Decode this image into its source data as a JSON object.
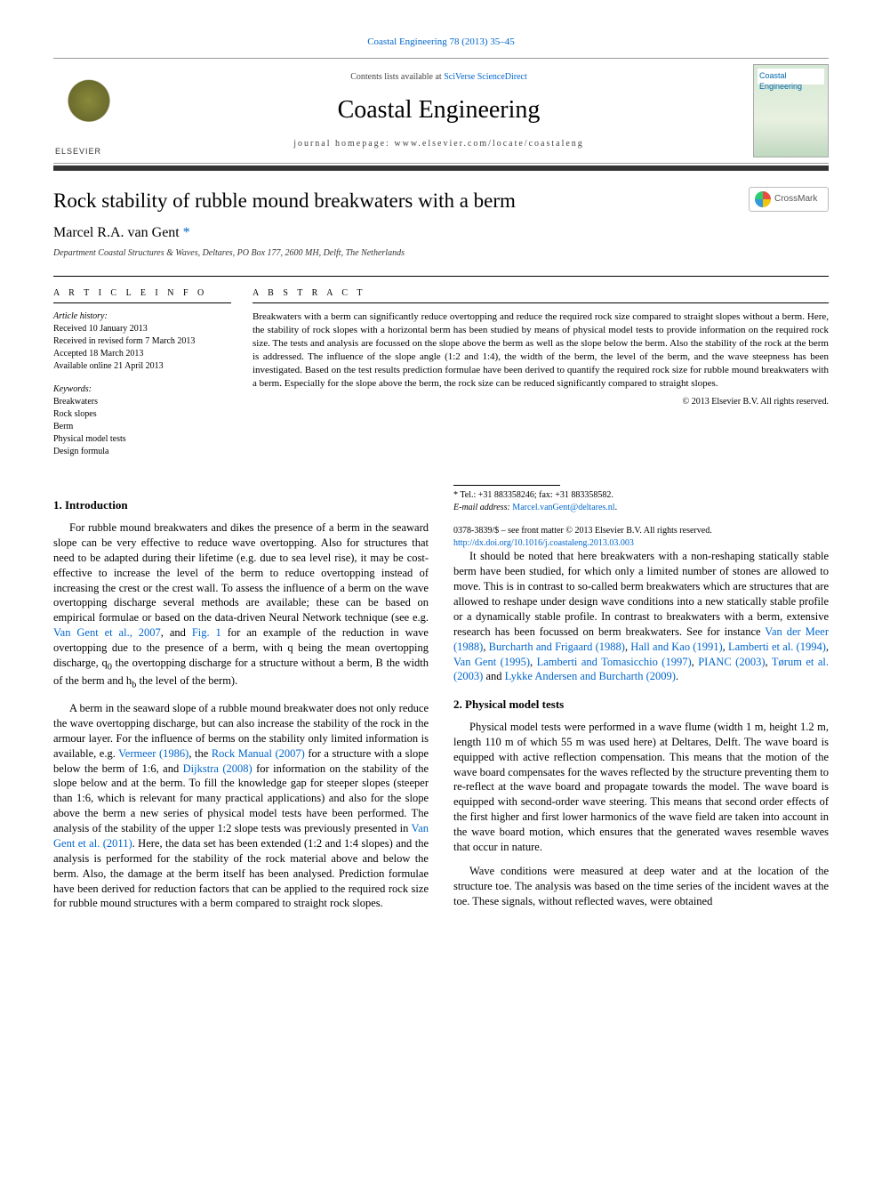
{
  "citation_line": "Coastal Engineering 78 (2013) 35–45",
  "contents_prefix": "Contents lists available at ",
  "contents_link": "SciVerse ScienceDirect",
  "journal_name": "Coastal Engineering",
  "homepage_line": "journal homepage: www.elsevier.com/locate/coastaleng",
  "cover_label": "Coastal Engineering",
  "crossmark_label": "CrossMark",
  "article": {
    "title": "Rock stability of rubble mound breakwaters with a berm",
    "author": "Marcel R.A. van Gent",
    "star_note": "*",
    "affiliation": "Department Coastal Structures & Waves, Deltares, PO Box 177, 2600 MH, Delft, The Netherlands"
  },
  "info": {
    "head": "A R T I C L E   I N F O",
    "history_label": "Article history:",
    "history": [
      "Received 10 January 2013",
      "Received in revised form 7 March 2013",
      "Accepted 18 March 2013",
      "Available online 21 April 2013"
    ],
    "keywords_label": "Keywords:",
    "keywords": [
      "Breakwaters",
      "Rock slopes",
      "Berm",
      "Physical model tests",
      "Design formula"
    ]
  },
  "abstract": {
    "head": "A B S T R A C T",
    "text": "Breakwaters with a berm can significantly reduce overtopping and reduce the required rock size compared to straight slopes without a berm. Here, the stability of rock slopes with a horizontal berm has been studied by means of physical model tests to provide information on the required rock size. The tests and analysis are focussed on the slope above the berm as well as the slope below the berm. Also the stability of the rock at the berm is addressed. The influence of the slope angle (1:2 and 1:4), the width of the berm, the level of the berm, and the wave steepness has been investigated. Based on the test results prediction formulae have been derived to quantify the required rock size for rubble mound breakwaters with a berm. Especially for the slope above the berm, the rock size can be reduced significantly compared to straight slopes.",
    "copyright": "© 2013 Elsevier B.V. All rights reserved."
  },
  "sections": {
    "intro_head": "1. Introduction",
    "intro_p1a": "For rubble mound breakwaters and dikes the presence of a berm in the seaward slope can be very effective to reduce wave overtopping. Also for structures that need to be adapted during their lifetime (e.g. due to sea level rise), it may be cost-effective to increase the level of the berm to reduce overtopping instead of increasing the crest or the crest wall. To assess the influence of a berm on the wave overtopping discharge several methods are available; these can be based on empirical formulae or based on the data-driven Neural Network technique (see e.g. ",
    "intro_p1_link1": "Van Gent et al., 2007",
    "intro_p1b": ", and ",
    "intro_p1_link2": "Fig. 1",
    "intro_p1c": " for an example of the reduction in wave overtopping due to the presence of a berm, with q being the mean overtopping discharge, q",
    "intro_p1_sub0": "0",
    "intro_p1d": " the overtopping discharge for a structure without a berm, B the width of the berm and h",
    "intro_p1_subb": "b",
    "intro_p1e": " the level of the berm).",
    "intro_p2a": "A berm in the seaward slope of a rubble mound breakwater does not only reduce the wave overtopping discharge, but can also increase the stability of the rock in the armour layer. For the influence of berms on the stability only limited information is available, e.g. ",
    "intro_p2_link1": "Vermeer (1986)",
    "intro_p2b": ", the ",
    "intro_p2_link2": "Rock Manual (2007)",
    "intro_p2c": " for a structure with a slope below the berm of 1:6, and ",
    "intro_p2_link3": "Dijkstra (2008)",
    "intro_p2d": " for information on the stability of the slope below and at the berm. To fill the knowledge gap for steeper slopes (steeper than 1:6, which is relevant for many practical applications) and also for the slope above the berm a new series of physical model tests have been performed. The analysis of the stability of the upper 1:2 slope tests was previously presented in ",
    "intro_p2_link4": "Van Gent et al. (2011)",
    "intro_p2e": ". Here, the data set has been extended (1:2 and 1:4 slopes) and the analysis is performed for the stability of the rock material above and below the berm. Also, the damage at the berm itself has been analysed. Prediction formulae have been derived for reduction factors that can be applied to the required rock size for rubble mound structures with a berm compared to straight rock slopes.",
    "intro_p3a": "It should be noted that here breakwaters with a non-reshaping statically stable berm have been studied, for which only a limited number of stones are allowed to move. This is in contrast to so-called berm breakwaters which are structures that are allowed to reshape under design wave conditions into a new statically stable profile or a dynamically stable profile. In contrast to breakwaters with a berm, extensive research has been focussed on berm breakwaters. See for instance ",
    "intro_p3_link1": "Van der Meer (1988)",
    "intro_p3b": ", ",
    "intro_p3_link2": "Burcharth and Frigaard (1988)",
    "intro_p3c": ", ",
    "intro_p3_link3": "Hall and Kao (1991)",
    "intro_p3d": ", ",
    "intro_p3_link4": "Lamberti et al. (1994)",
    "intro_p3e": ", ",
    "intro_p3_link5": "Van Gent (1995)",
    "intro_p3f": ", ",
    "intro_p3_link6": "Lamberti and Tomasicchio (1997)",
    "intro_p3g": ", ",
    "intro_p3_link7": "PIANC (2003)",
    "intro_p3h": ", ",
    "intro_p3_link8": "Tørum et al. (2003)",
    "intro_p3i": " and ",
    "intro_p3_link9": "Lykke Andersen and Burcharth (2009)",
    "intro_p3j": ".",
    "tests_head": "2. Physical model tests",
    "tests_p1": "Physical model tests were performed in a wave flume (width 1 m, height 1.2 m, length 110 m of which 55 m was used here) at Deltares, Delft. The wave board is equipped with active reflection compensation. This means that the motion of the wave board compensates for the waves reflected by the structure preventing them to re-reflect at the wave board and propagate towards the model. The wave board is equipped with second-order wave steering. This means that second order effects of the first higher and first lower harmonics of the wave field are taken into account in the wave board motion, which ensures that the generated waves resemble waves that occur in nature.",
    "tests_p2": "Wave conditions were measured at deep water and at the location of the structure toe. The analysis was based on the time series of the incident waves at the toe. These signals, without reflected waves, were obtained"
  },
  "footnotes": {
    "tel": "* Tel.: +31 883358246; fax: +31 883358582.",
    "email_label": "E-mail address: ",
    "email": "Marcel.vanGent@deltares.nl",
    "email_suffix": "."
  },
  "bottom": {
    "line1": "0378-3839/$ – see front matter © 2013 Elsevier B.V. All rights reserved.",
    "doi": "http://dx.doi.org/10.1016/j.coastaleng.2013.03.003"
  },
  "colors": {
    "link": "#0066cc",
    "text": "#000000",
    "rule": "#000000",
    "bar": "#333333"
  }
}
